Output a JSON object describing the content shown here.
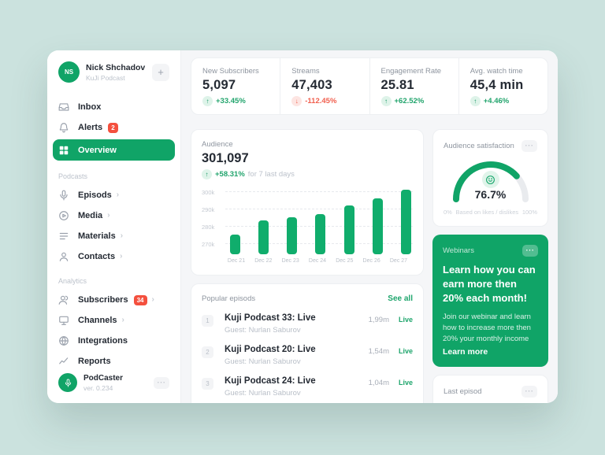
{
  "colors": {
    "page_bg": "#cbe2de",
    "primary_green": "#10a467",
    "bar_green": "#10ad6c",
    "positive_green": "#21a46c",
    "negative_red": "#f1604f",
    "badge_red": "#f4503e"
  },
  "sidebar": {
    "profile": {
      "initials": "NS",
      "name": "Nick Shchadov",
      "subtitle": "KuJi Podcast",
      "add_label": "+"
    },
    "menu": [
      {
        "label": "Inbox",
        "icon": "inbox-icon"
      },
      {
        "label": "Alerts",
        "icon": "bell-icon",
        "badge": "2"
      },
      {
        "label": "Overview",
        "icon": "grid-icon",
        "active": true
      }
    ],
    "sections": [
      {
        "title": "Podcasts",
        "items": [
          {
            "label": "Episods",
            "icon": "microphone-icon",
            "chevron": true
          },
          {
            "label": "Media",
            "icon": "play-circle-icon",
            "chevron": true
          },
          {
            "label": "Materials",
            "icon": "list-icon",
            "chevron": true
          },
          {
            "label": "Contacts",
            "icon": "user-icon",
            "chevron": true
          }
        ]
      },
      {
        "title": "Analytics",
        "items": [
          {
            "label": "Subscribers",
            "icon": "users-icon",
            "chevron": true,
            "badge": "34"
          },
          {
            "label": "Channels",
            "icon": "monitor-icon",
            "chevron": true
          },
          {
            "label": "Integrations",
            "icon": "globe-icon"
          },
          {
            "label": "Reports",
            "icon": "trend-icon"
          }
        ]
      }
    ],
    "footer": {
      "name": "PodCaster",
      "version": "ver. 0.234",
      "menu": "⋯"
    }
  },
  "stats": [
    {
      "label": "New Subscribers",
      "value": "5,097",
      "change": "+33.45%",
      "direction": "up"
    },
    {
      "label": "Streams",
      "value": "47,403",
      "change": "-112.45%",
      "direction": "down"
    },
    {
      "label": "Engagement Rate",
      "value": "25.81",
      "change": "+62.52%",
      "direction": "up"
    },
    {
      "label": "Avg. watch time",
      "value": "45,4 min",
      "change": "+4.46%",
      "direction": "up"
    }
  ],
  "audience": {
    "title": "Audience",
    "value": "301,097",
    "change": "+58.31%",
    "change_suffix": "for 7 last days"
  },
  "chart_data": {
    "type": "bar",
    "title": "Audience",
    "categories": [
      "Dec 21",
      "Dec 22",
      "Dec 23",
      "Dec 24",
      "Dec 25",
      "Dec 26",
      "Dec 27"
    ],
    "values": [
      275000,
      283000,
      285000,
      287000,
      292000,
      296000,
      301000
    ],
    "y_ticks": [
      {
        "label": "300k",
        "value": 300000
      },
      {
        "label": "290k",
        "value": 290000
      },
      {
        "label": "280k",
        "value": 280000
      },
      {
        "label": "270k",
        "value": 270000
      }
    ],
    "ylim": [
      263000,
      302000
    ],
    "grid": "dashed-horizontal",
    "bar_color": "#10ad6c"
  },
  "satisfaction": {
    "title": "Audience satisfaction",
    "menu": "⋯",
    "value": "76.7%",
    "percent": 76.7,
    "min": "0%",
    "caption": "Based on likes / dislikes",
    "max": "100%"
  },
  "webinar": {
    "label": "Webinars",
    "menu": "⋯",
    "title": "Learn how you can earn more then 20% each month!",
    "body": "Join our webinar and learn how to increase more then 20% your monthly income",
    "cta": "Learn more"
  },
  "episodes": {
    "title": "Popular episods",
    "see_all": "See all",
    "rows": [
      {
        "rank": "1",
        "title": "Kuji Podcast 33: Live",
        "guest": "Guest: Nurlan Saburov",
        "views": "1,99m",
        "status": "Live"
      },
      {
        "rank": "2",
        "title": "Kuji Podcast 20: Live",
        "guest": "Guest: Nurlan Saburov",
        "views": "1,54m",
        "status": "Live"
      },
      {
        "rank": "3",
        "title": "Kuji Podcast 24: Live",
        "guest": "Guest: Nurlan Saburov",
        "views": "1,04m",
        "status": "Live"
      }
    ]
  },
  "last_episode": {
    "title": "Last episod",
    "menu": "⋯"
  }
}
